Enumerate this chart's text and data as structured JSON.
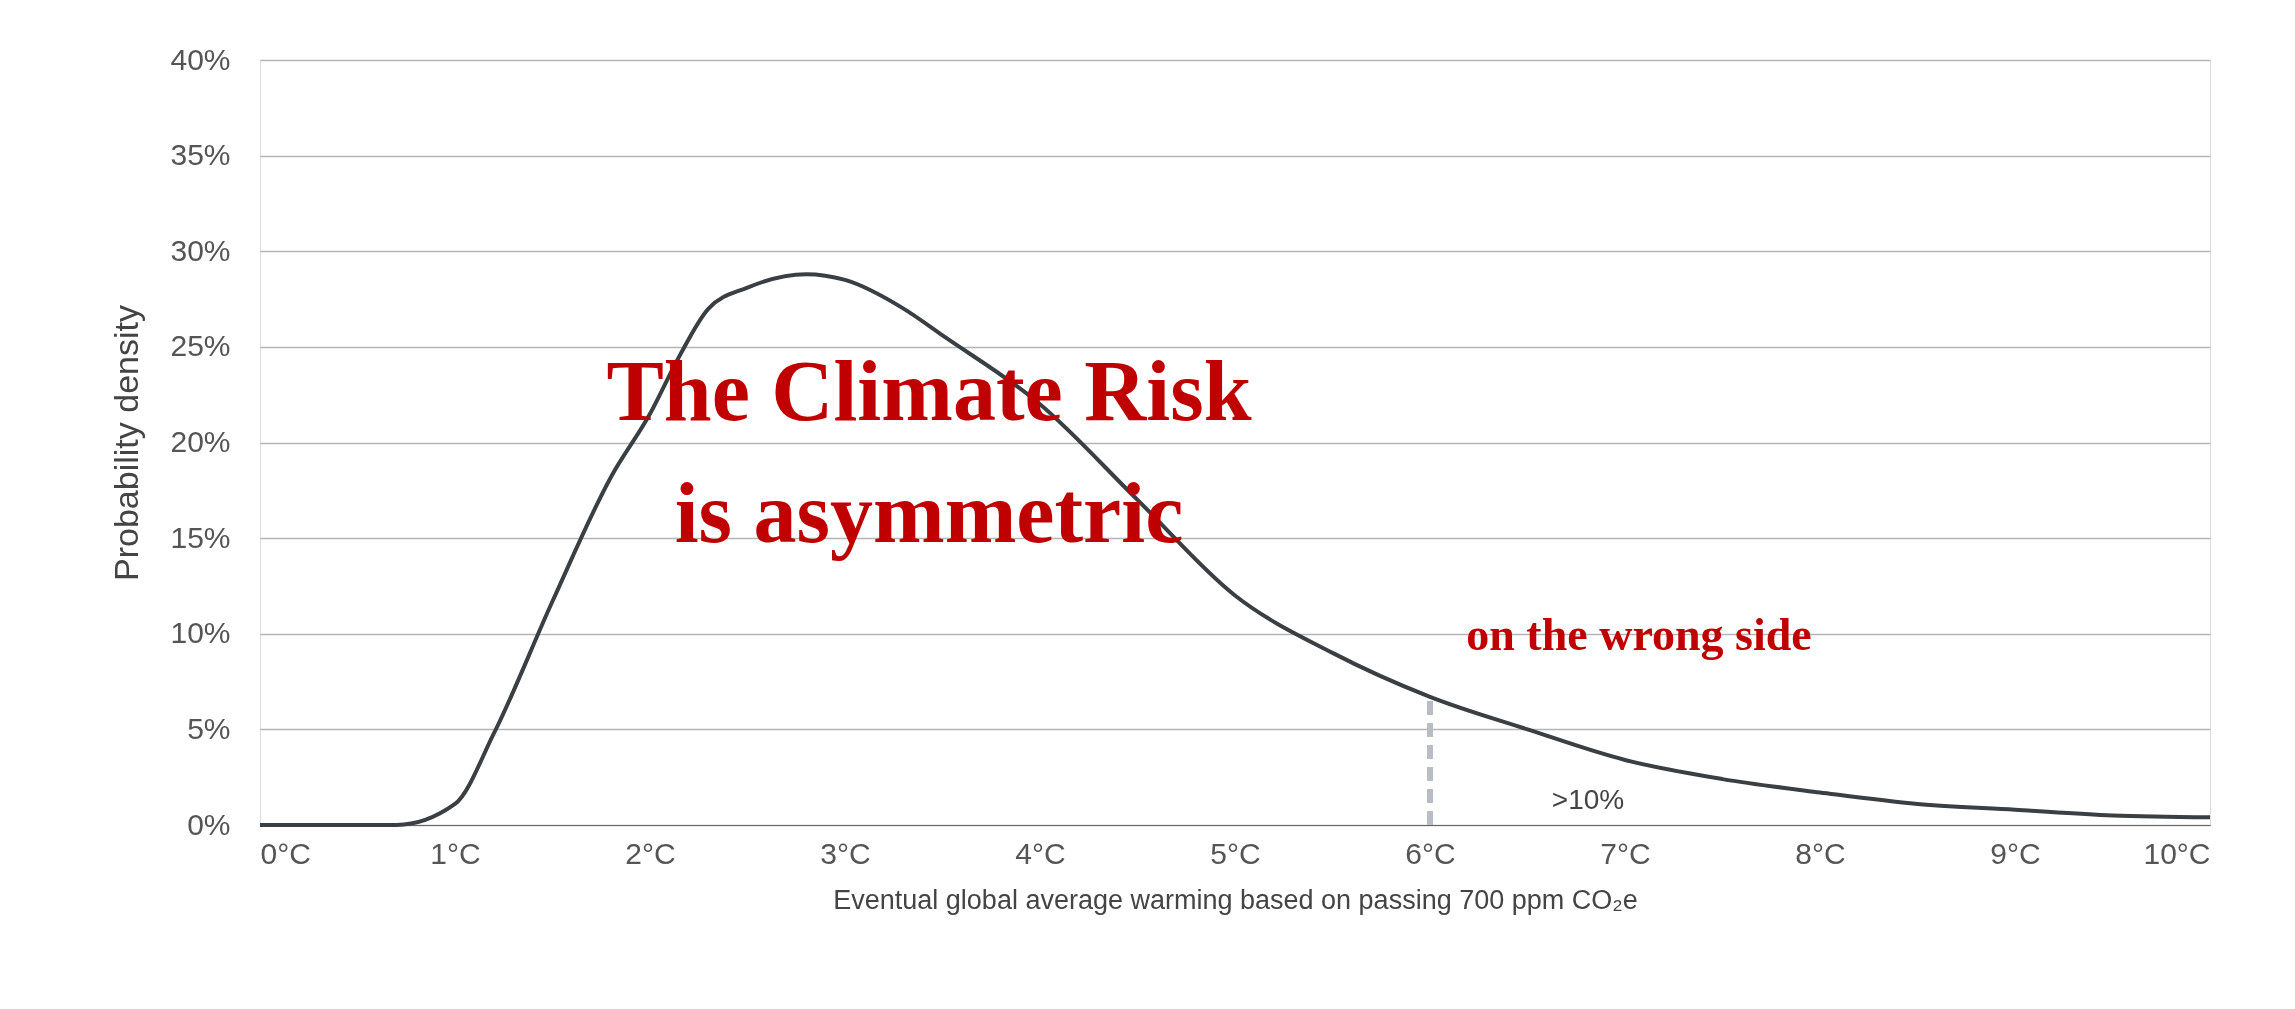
{
  "chart_data": {
    "type": "line",
    "xlabel": "Eventual global average warming based on passing 700 ppm CO₂e",
    "ylabel": "Probability density",
    "x": [
      0,
      0.3,
      0.7,
      1.0,
      1.2,
      1.5,
      1.8,
      2.0,
      2.15,
      2.3,
      2.5,
      2.8,
      3.0,
      3.3,
      3.5,
      4.0,
      4.5,
      5.0,
      5.5,
      6.0,
      6.5,
      7.0,
      7.5,
      8.0,
      8.5,
      9.0,
      9.5,
      10.0
    ],
    "series": [
      {
        "color": "#3a3f44",
        "values": [
          0,
          0,
          0,
          1.1,
          4.8,
          11.7,
          18.2,
          21.5,
          24.5,
          27,
          28.1,
          28.8,
          28.5,
          27,
          25.6,
          22,
          17,
          12,
          9,
          6.7,
          5,
          3.4,
          2.4,
          1.7,
          1.1,
          0.8,
          0.5,
          0.4
        ]
      }
    ],
    "xlim": [
      0,
      10
    ],
    "xticks": [
      {
        "value": 0,
        "label": "0°C"
      },
      {
        "value": 1,
        "label": "1°C"
      },
      {
        "value": 2,
        "label": "2°C"
      },
      {
        "value": 3,
        "label": "3°C"
      },
      {
        "value": 4,
        "label": "4°C"
      },
      {
        "value": 5,
        "label": "5°C"
      },
      {
        "value": 6,
        "label": "6°C"
      },
      {
        "value": 7,
        "label": "7°C"
      },
      {
        "value": 8,
        "label": "8°C"
      },
      {
        "value": 9,
        "label": "9°C"
      },
      {
        "value": 10,
        "label": "10°C"
      }
    ],
    "ylim": [
      0,
      40
    ],
    "yticks": [
      {
        "value": 0,
        "label": "0%"
      },
      {
        "value": 5,
        "label": "5%"
      },
      {
        "value": 10,
        "label": "10%"
      },
      {
        "value": 15,
        "label": "15%"
      },
      {
        "value": 20,
        "label": "20%"
      },
      {
        "value": 25,
        "label": "25%"
      },
      {
        "value": 30,
        "label": "30%"
      },
      {
        "value": 35,
        "label": "35%"
      },
      {
        "value": 40,
        "label": "40%"
      }
    ],
    "grid": "y",
    "marker": "none",
    "line_style": "solid",
    "ref_lines": [
      {
        "axis": "x",
        "value": 6,
        "color": "#b8bcc4",
        "line_style": "dashed"
      }
    ],
    "annotations": [
      "The Climate Risk",
      "is asymmetric",
      "on the  wrong side",
      ">10%"
    ]
  }
}
